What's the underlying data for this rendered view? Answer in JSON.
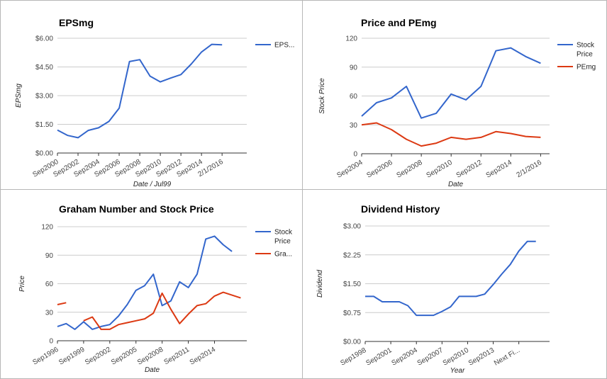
{
  "colors": {
    "blue": "#3366cc",
    "red": "#dc3912",
    "grid": "#cccccc",
    "axis": "#333333"
  },
  "chart_data": [
    {
      "type": "line",
      "title": "EPSmg",
      "xlabel": "Date / Jul99",
      "ylabel": "EPSmg",
      "ylim": [
        0,
        6
      ],
      "yticks": [
        "$0.00",
        "$1.50",
        "$3.00",
        "$4.50",
        "$6.00"
      ],
      "ytick_values": [
        0,
        1.5,
        3,
        4.5,
        6
      ],
      "xlim": [
        0,
        18.4
      ],
      "xticks": [
        "Sep2000",
        "Sep2002",
        "Sep2004",
        "Sep2006",
        "Sep2008",
        "Sep2010",
        "Sep2012",
        "Sep2014",
        "2/1/2016"
      ],
      "xtick_values": [
        0,
        2,
        4,
        6,
        8,
        10,
        12,
        14,
        16
      ],
      "grid": true,
      "legend": "right",
      "series": [
        {
          "name": "EPS...",
          "color": "#3366cc",
          "x": [
            0,
            1,
            2,
            3,
            4,
            5,
            6,
            7,
            8,
            9,
            10,
            11,
            12,
            13,
            14,
            15,
            16,
            17
          ],
          "values": [
            1.2,
            0.92,
            0.8,
            1.18,
            1.32,
            1.65,
            2.35,
            4.78,
            4.88,
            4.02,
            3.72,
            3.92,
            4.1,
            4.65,
            5.28,
            5.68,
            5.66,
            null
          ]
        }
      ]
    },
    {
      "type": "line",
      "title": "Price and PEmg",
      "xlabel": "Date",
      "ylabel": "Stock Price",
      "ylim": [
        0,
        120
      ],
      "yticks": [
        "0",
        "30",
        "60",
        "90",
        "120"
      ],
      "ytick_values": [
        0,
        30,
        60,
        90,
        120
      ],
      "xlim": [
        0,
        12.6
      ],
      "xticks": [
        "Sep2004",
        "Sep2006",
        "Sep2008",
        "Sep2010",
        "Sep2012",
        "Sep2014",
        "2/1/2016"
      ],
      "xtick_values": [
        0,
        2,
        4,
        6,
        8,
        10,
        12
      ],
      "grid": true,
      "legend": "right",
      "series": [
        {
          "name": "Stock Price",
          "color": "#3366cc",
          "x": [
            0,
            1,
            2,
            3,
            4,
            5,
            6,
            7,
            8,
            9,
            10,
            11,
            12
          ],
          "values": [
            39,
            53,
            58,
            70,
            37,
            42,
            62,
            56,
            70,
            107,
            110,
            101,
            94
          ]
        },
        {
          "name": "PEmg",
          "color": "#dc3912",
          "x": [
            0,
            1,
            2,
            3,
            4,
            5,
            6,
            7,
            8,
            9,
            10,
            11,
            12
          ],
          "values": [
            30,
            32,
            25,
            15,
            8,
            11,
            17,
            15,
            17,
            23,
            21,
            18,
            17
          ]
        }
      ]
    },
    {
      "type": "line",
      "title": "Graham Number and Stock Price",
      "xlabel": "Date",
      "ylabel": "Price",
      "ylim": [
        0,
        120
      ],
      "yticks": [
        "0",
        "30",
        "60",
        "90",
        "120"
      ],
      "ytick_values": [
        0,
        30,
        60,
        90,
        120
      ],
      "xlim": [
        0,
        21.7
      ],
      "xticks": [
        "Sep1996",
        "Sep1999",
        "Sep2002",
        "Sep2005",
        "Sep2008",
        "Sep2011",
        "Sep2014"
      ],
      "xtick_values": [
        0,
        3,
        6,
        9,
        12,
        15,
        18
      ],
      "grid": true,
      "legend": "right",
      "series": [
        {
          "name": "Stock Price",
          "color": "#3366cc",
          "x": [
            0,
            1,
            2,
            3,
            4,
            5,
            6,
            7,
            8,
            9,
            10,
            11,
            12,
            13,
            14,
            15,
            16,
            17,
            18,
            19,
            20,
            21
          ],
          "values": [
            15,
            18,
            12,
            20,
            12,
            15,
            17,
            26,
            38,
            53,
            58,
            70,
            37,
            42,
            62,
            56,
            70,
            107,
            110,
            101,
            94,
            null
          ]
        },
        {
          "name": "Gra...",
          "color": "#dc3912",
          "x": [
            0,
            1,
            2,
            3,
            4,
            5,
            6,
            7,
            8,
            9,
            10,
            11,
            12,
            13,
            14,
            15,
            16,
            17,
            18,
            19,
            20,
            21
          ],
          "values": [
            38,
            40,
            null,
            21,
            25,
            12,
            12,
            17,
            19,
            21,
            23,
            29,
            50,
            33,
            18,
            28,
            37,
            39,
            47,
            51,
            48,
            45
          ]
        }
      ]
    },
    {
      "type": "line",
      "title": "Dividend History",
      "xlabel": "Year",
      "ylabel": "Dividend",
      "ylim": [
        0,
        3
      ],
      "yticks": [
        "$0.00",
        "$0.75",
        "$1.50",
        "$2.25",
        "$3.00"
      ],
      "ytick_values": [
        0,
        0.75,
        1.5,
        2.25,
        3
      ],
      "xlim": [
        0,
        21.6
      ],
      "xticks": [
        "Sep1998",
        "Sep2001",
        "Sep2004",
        "Sep2007",
        "Sep2010",
        "Sep2013",
        "Next Fi..."
      ],
      "xtick_values": [
        0,
        3,
        6,
        9,
        12,
        15,
        18
      ],
      "grid": true,
      "legend": "none",
      "series": [
        {
          "name": "",
          "color": "#3366cc",
          "x": [
            0,
            1,
            2,
            3,
            4,
            5,
            6,
            7,
            8,
            9,
            10,
            11,
            12,
            13,
            14,
            15,
            16,
            17,
            18,
            19,
            20
          ],
          "values": [
            1.17,
            1.17,
            1.03,
            1.03,
            1.03,
            0.93,
            0.68,
            0.68,
            0.68,
            0.78,
            0.9,
            1.17,
            1.17,
            1.17,
            1.23,
            1.48,
            1.75,
            2.0,
            2.35,
            2.6,
            2.6
          ]
        }
      ]
    }
  ]
}
